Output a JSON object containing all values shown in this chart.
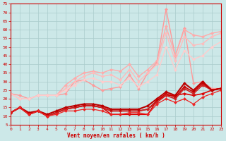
{
  "background_color": "#cce8e8",
  "grid_color": "#aacccc",
  "xlabel": "Vent moyen/en rafales ( km/h )",
  "xlim": [
    0,
    23
  ],
  "ylim": [
    5,
    75
  ],
  "yticks": [
    5,
    10,
    15,
    20,
    25,
    30,
    35,
    40,
    45,
    50,
    55,
    60,
    65,
    70,
    75
  ],
  "xticks": [
    0,
    1,
    2,
    3,
    4,
    5,
    6,
    7,
    8,
    9,
    10,
    11,
    12,
    13,
    14,
    15,
    16,
    17,
    18,
    19,
    20,
    21,
    22,
    23
  ],
  "x": [
    0,
    1,
    2,
    3,
    4,
    5,
    6,
    7,
    8,
    9,
    10,
    11,
    12,
    13,
    14,
    15,
    16,
    17,
    18,
    19,
    20,
    21,
    22,
    23
  ],
  "lines": [
    {
      "data": [
        23,
        22,
        20,
        22,
        22,
        22,
        23,
        30,
        31,
        28,
        25,
        26,
        27,
        34,
        26,
        35,
        41,
        72,
        45,
        61,
        29,
        30,
        26,
        26
      ],
      "color": "#ff9999",
      "lw": 1.0
    },
    {
      "data": [
        23,
        20,
        20,
        22,
        22,
        22,
        28,
        32,
        35,
        36,
        35,
        37,
        36,
        40,
        33,
        37,
        42,
        62,
        45,
        60,
        57,
        56,
        58,
        59
      ],
      "color": "#ffaaaa",
      "lw": 1.0
    },
    {
      "data": [
        23,
        20,
        20,
        22,
        22,
        22,
        26,
        30,
        33,
        35,
        33,
        34,
        31,
        37,
        30,
        35,
        40,
        58,
        42,
        56,
        51,
        52,
        56,
        58
      ],
      "color": "#ffbbbb",
      "lw": 1.0
    },
    {
      "data": [
        23,
        20,
        20,
        22,
        22,
        22,
        25,
        28,
        31,
        32,
        30,
        30,
        28,
        32,
        27,
        30,
        34,
        50,
        37,
        48,
        43,
        45,
        50,
        53
      ],
      "color": "#ffcccc",
      "lw": 1.0
    },
    {
      "data": [
        12,
        15,
        11,
        13,
        10,
        12,
        14,
        15,
        16,
        16,
        15,
        11,
        11,
        11,
        11,
        11,
        19,
        22,
        22,
        23,
        22,
        23,
        25,
        26
      ],
      "color": "#dd0000",
      "lw": 1.2
    },
    {
      "data": [
        12,
        15,
        11,
        13,
        10,
        12,
        14,
        15,
        16,
        16,
        15,
        13,
        13,
        13,
        13,
        14,
        19,
        23,
        21,
        27,
        24,
        29,
        25,
        26
      ],
      "color": "#cc0000",
      "lw": 1.2
    },
    {
      "data": [
        12,
        15,
        11,
        13,
        10,
        12,
        14,
        15,
        16,
        16,
        15,
        13,
        13,
        13,
        13,
        14,
        18,
        22,
        20,
        26,
        23,
        28,
        25,
        26
      ],
      "color": "#cc2222",
      "lw": 1.2
    },
    {
      "data": [
        12,
        15,
        12,
        13,
        11,
        13,
        15,
        16,
        17,
        17,
        16,
        14,
        14,
        14,
        14,
        16,
        20,
        24,
        22,
        29,
        25,
        30,
        25,
        26
      ],
      "color": "#bb0000",
      "lw": 1.5
    },
    {
      "data": [
        12,
        15,
        11,
        13,
        10,
        11,
        13,
        13,
        14,
        14,
        13,
        11,
        11,
        12,
        12,
        11,
        17,
        20,
        18,
        20,
        17,
        21,
        23,
        25
      ],
      "color": "#ee2222",
      "lw": 0.9
    }
  ],
  "marker": "D",
  "marker_size": 2.2
}
